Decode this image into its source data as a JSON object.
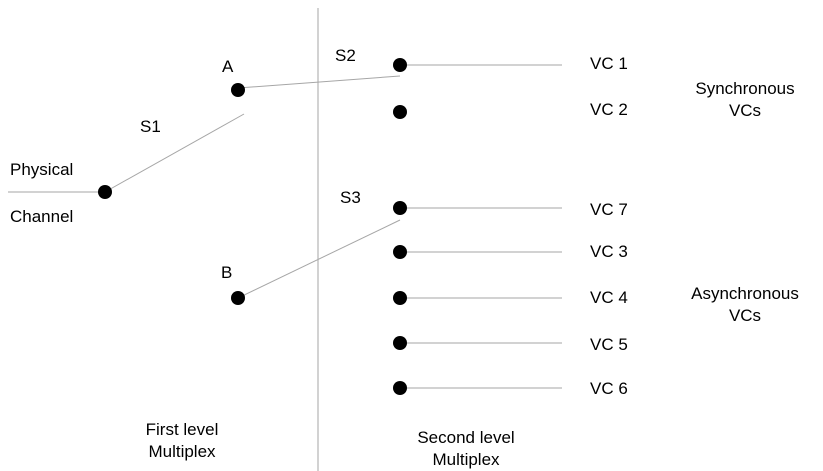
{
  "colors": {
    "line": "#a6a6a6",
    "node": "#000000",
    "text": "#000000",
    "background": "#ffffff"
  },
  "labels": {
    "physical_channel_line1": "Physical",
    "physical_channel_line2": "Channel",
    "switch_s1": "S1",
    "switch_s2": "S2",
    "switch_s3": "S3",
    "node_a": "A",
    "node_b": "B",
    "vc1": "VC 1",
    "vc2": "VC 2",
    "vc7": "VC 7",
    "vc3": "VC 3",
    "vc4": "VC 4",
    "vc5": "VC 5",
    "vc6": "VC 6",
    "synchronous_line1": "Synchronous",
    "synchronous_line2": "VCs",
    "asynchronous_line1": "Asynchronous",
    "asynchronous_line2": "VCs",
    "first_level_line1": "First level",
    "first_level_line2": "Multiplex",
    "second_level_line1": "Second level",
    "second_level_line2": "Multiplex"
  }
}
